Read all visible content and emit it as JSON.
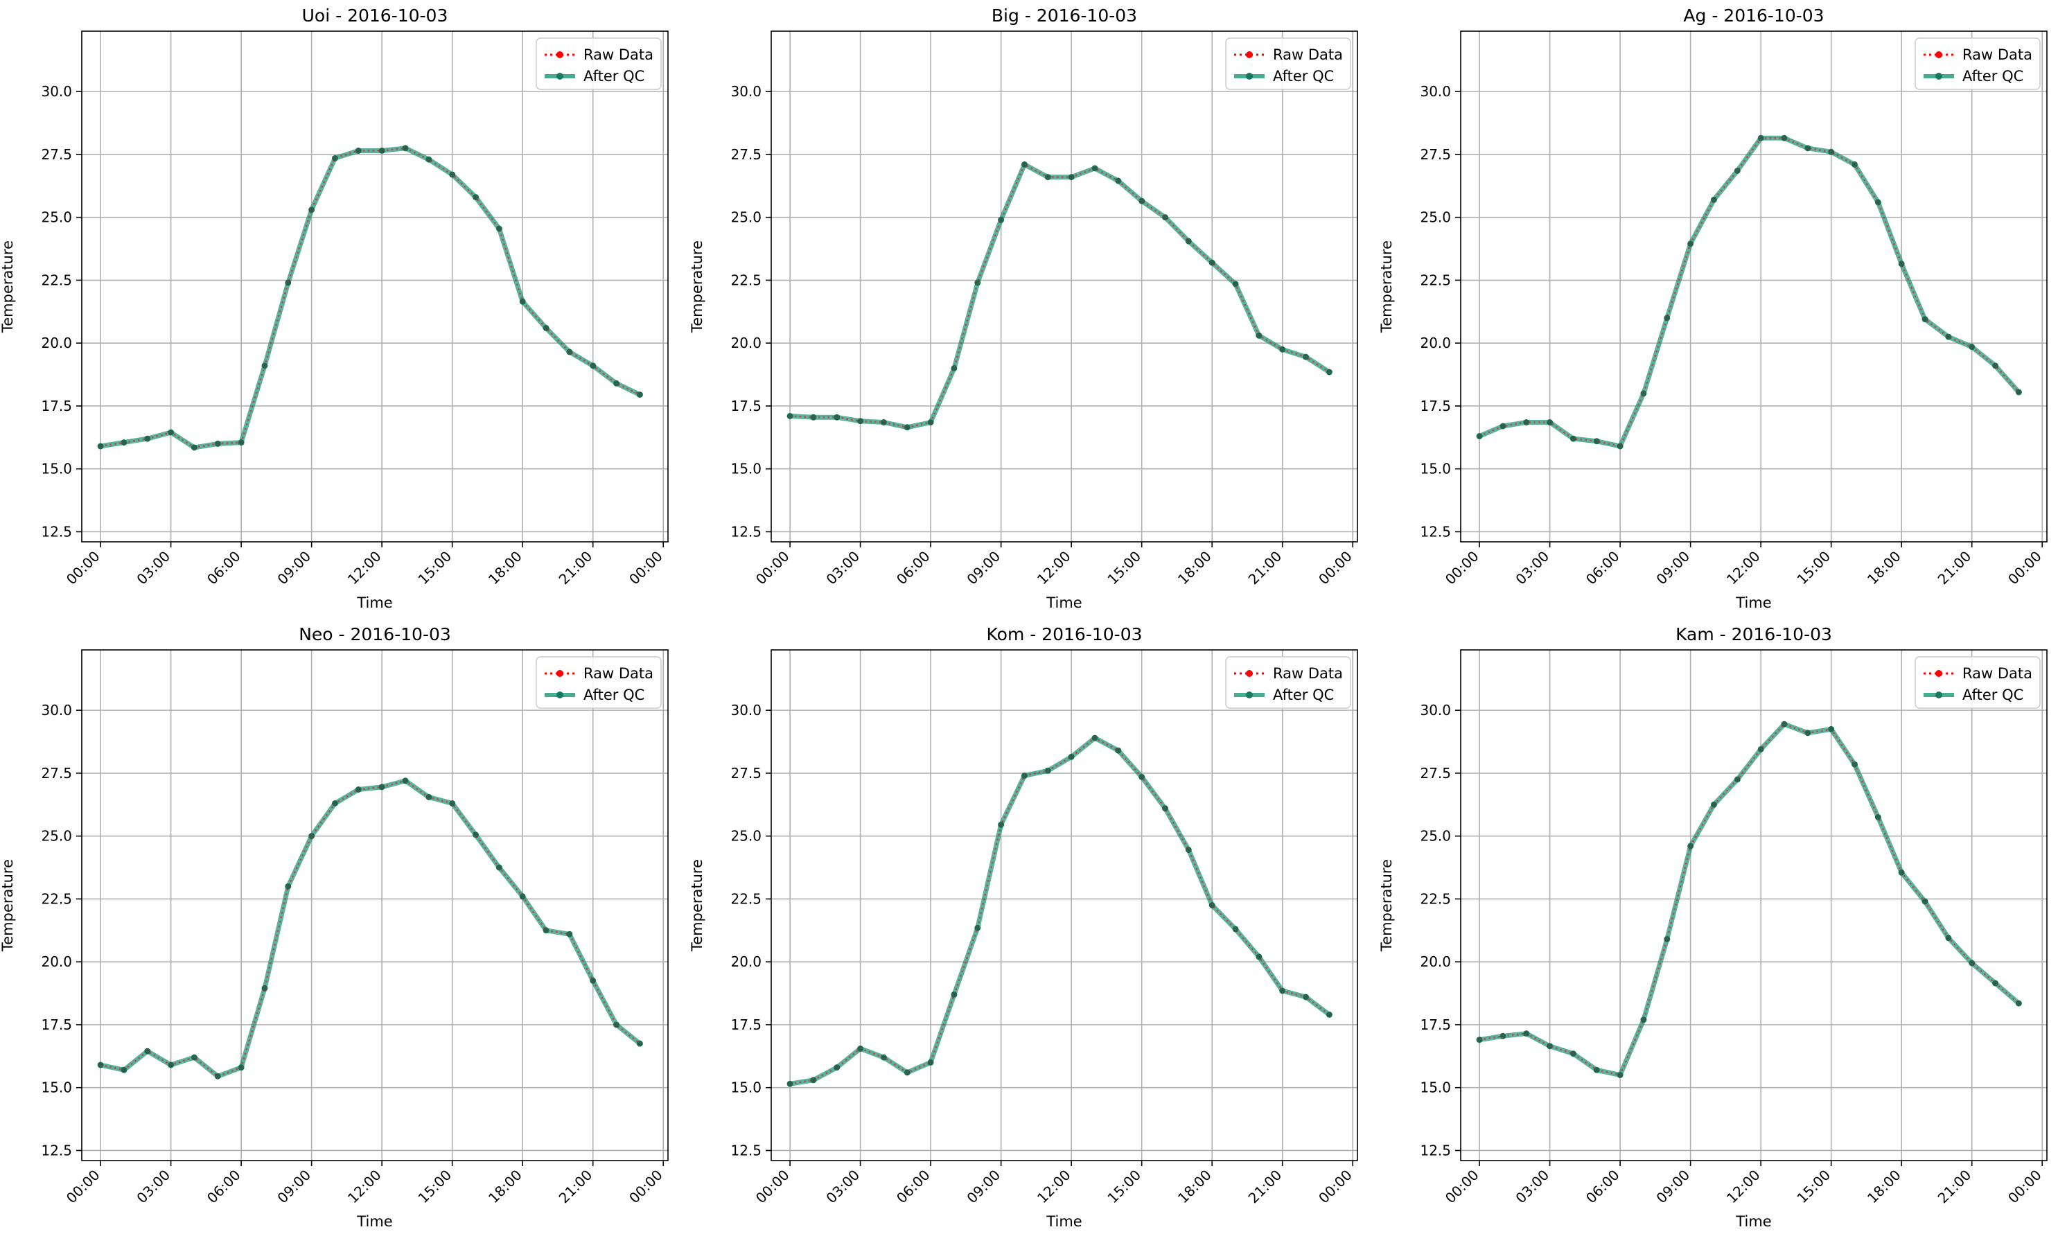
{
  "figure": {
    "x_tick_labels": [
      "00:00",
      "03:00",
      "06:00",
      "09:00",
      "12:00",
      "15:00",
      "18:00",
      "21:00",
      "00:00"
    ]
  },
  "chart_data": [
    {
      "type": "line",
      "title": "Uoi - 2016-10-03",
      "xlabel": "Time",
      "ylabel": "Temperature",
      "x_unit": "hours",
      "xlim": [
        -0.8,
        24.2
      ],
      "ylim": [
        12.1,
        32.4
      ],
      "yticks": [
        12.5,
        15.0,
        17.5,
        20.0,
        22.5,
        25.0,
        27.5,
        30.0
      ],
      "grid": true,
      "legend_position": "top-right",
      "x": [
        0,
        1,
        2,
        3,
        4,
        5,
        6,
        7,
        8,
        9,
        10,
        11,
        12,
        13,
        14,
        15,
        16,
        17,
        18,
        19,
        20,
        21,
        22,
        23
      ],
      "series": [
        {
          "name": "Raw Data",
          "color": "#ff0000",
          "style": "dotted",
          "marker": "circle",
          "values": [
            15.9,
            16.05,
            16.2,
            16.45,
            15.85,
            16.0,
            16.05,
            19.1,
            22.4,
            25.3,
            27.35,
            27.65,
            27.65,
            27.75,
            27.3,
            26.7,
            25.8,
            24.55,
            21.65,
            20.6,
            19.65,
            19.1,
            18.4,
            17.95
          ]
        },
        {
          "name": "After QC",
          "color": "#1a9678",
          "style": "solid",
          "marker": "circle",
          "values": [
            15.9,
            16.05,
            16.2,
            16.45,
            15.85,
            16.0,
            16.05,
            19.1,
            22.4,
            25.3,
            27.35,
            27.65,
            27.65,
            27.75,
            27.3,
            26.7,
            25.8,
            24.55,
            21.65,
            20.6,
            19.65,
            19.1,
            18.4,
            17.95
          ]
        }
      ]
    },
    {
      "type": "line",
      "title": "Big - 2016-10-03",
      "xlabel": "Time",
      "ylabel": "Temperature",
      "x_unit": "hours",
      "xlim": [
        -0.8,
        24.2
      ],
      "ylim": [
        12.1,
        32.4
      ],
      "yticks": [
        12.5,
        15.0,
        17.5,
        20.0,
        22.5,
        25.0,
        27.5,
        30.0
      ],
      "grid": true,
      "legend_position": "top-right",
      "x": [
        0,
        1,
        2,
        3,
        4,
        5,
        6,
        7,
        8,
        9,
        10,
        11,
        12,
        13,
        14,
        15,
        16,
        17,
        18,
        19,
        20,
        21,
        22,
        23
      ],
      "series": [
        {
          "name": "Raw Data",
          "color": "#ff0000",
          "style": "dotted",
          "marker": "circle",
          "values": [
            17.1,
            17.05,
            17.05,
            16.9,
            16.85,
            16.65,
            16.85,
            19.0,
            22.4,
            24.9,
            27.1,
            26.6,
            26.6,
            26.95,
            26.45,
            25.65,
            25.0,
            24.05,
            23.2,
            22.35,
            20.3,
            19.75,
            19.45,
            18.85
          ]
        },
        {
          "name": "After QC",
          "color": "#1a9678",
          "style": "solid",
          "marker": "circle",
          "values": [
            17.1,
            17.05,
            17.05,
            16.9,
            16.85,
            16.65,
            16.85,
            19.0,
            22.4,
            24.9,
            27.1,
            26.6,
            26.6,
            26.95,
            26.45,
            25.65,
            25.0,
            24.05,
            23.2,
            22.35,
            20.3,
            19.75,
            19.45,
            18.85
          ]
        }
      ]
    },
    {
      "type": "line",
      "title": "Ag - 2016-10-03",
      "xlabel": "Time",
      "ylabel": "Temperature",
      "x_unit": "hours",
      "xlim": [
        -0.8,
        24.2
      ],
      "ylim": [
        12.1,
        32.4
      ],
      "yticks": [
        12.5,
        15.0,
        17.5,
        20.0,
        22.5,
        25.0,
        27.5,
        30.0
      ],
      "grid": true,
      "legend_position": "top-right",
      "x": [
        0,
        1,
        2,
        3,
        4,
        5,
        6,
        7,
        8,
        9,
        10,
        11,
        12,
        13,
        14,
        15,
        16,
        17,
        18,
        19,
        20,
        21,
        22,
        23
      ],
      "series": [
        {
          "name": "Raw Data",
          "color": "#ff0000",
          "style": "dotted",
          "marker": "circle",
          "values": [
            16.3,
            16.7,
            16.85,
            16.85,
            16.2,
            16.1,
            15.9,
            18.0,
            21.0,
            23.95,
            25.7,
            26.85,
            28.15,
            28.15,
            27.75,
            27.6,
            27.1,
            25.6,
            23.15,
            20.95,
            20.25,
            19.85,
            19.1,
            18.05
          ]
        },
        {
          "name": "After QC",
          "color": "#1a9678",
          "style": "solid",
          "marker": "circle",
          "values": [
            16.3,
            16.7,
            16.85,
            16.85,
            16.2,
            16.1,
            15.9,
            18.0,
            21.0,
            23.95,
            25.7,
            26.85,
            28.15,
            28.15,
            27.75,
            27.6,
            27.1,
            25.6,
            23.15,
            20.95,
            20.25,
            19.85,
            19.1,
            18.05
          ]
        }
      ]
    },
    {
      "type": "line",
      "title": "Neo - 2016-10-03",
      "xlabel": "Time",
      "ylabel": "Temperature",
      "x_unit": "hours",
      "xlim": [
        -0.8,
        24.2
      ],
      "ylim": [
        12.1,
        32.4
      ],
      "yticks": [
        12.5,
        15.0,
        17.5,
        20.0,
        22.5,
        25.0,
        27.5,
        30.0
      ],
      "grid": true,
      "legend_position": "top-right",
      "x": [
        0,
        1,
        2,
        3,
        4,
        5,
        6,
        7,
        8,
        9,
        10,
        11,
        12,
        13,
        14,
        15,
        16,
        17,
        18,
        19,
        20,
        21,
        22,
        23
      ],
      "series": [
        {
          "name": "Raw Data",
          "color": "#ff0000",
          "style": "dotted",
          "marker": "circle",
          "values": [
            15.9,
            15.7,
            16.45,
            15.9,
            16.2,
            15.45,
            15.8,
            18.95,
            23.0,
            25.0,
            26.3,
            26.85,
            26.95,
            27.2,
            26.55,
            26.3,
            25.05,
            23.75,
            22.6,
            21.25,
            21.1,
            19.25,
            17.5,
            16.75
          ]
        },
        {
          "name": "After QC",
          "color": "#1a9678",
          "style": "solid",
          "marker": "circle",
          "values": [
            15.9,
            15.7,
            16.45,
            15.9,
            16.2,
            15.45,
            15.8,
            18.95,
            23.0,
            25.0,
            26.3,
            26.85,
            26.95,
            27.2,
            26.55,
            26.3,
            25.05,
            23.75,
            22.6,
            21.25,
            21.1,
            19.25,
            17.5,
            16.75
          ]
        }
      ]
    },
    {
      "type": "line",
      "title": "Kom - 2016-10-03",
      "xlabel": "Time",
      "ylabel": "Temperature",
      "x_unit": "hours",
      "xlim": [
        -0.8,
        24.2
      ],
      "ylim": [
        12.1,
        32.4
      ],
      "yticks": [
        12.5,
        15.0,
        17.5,
        20.0,
        22.5,
        25.0,
        27.5,
        30.0
      ],
      "grid": true,
      "legend_position": "top-right",
      "x": [
        0,
        1,
        2,
        3,
        4,
        5,
        6,
        7,
        8,
        9,
        10,
        11,
        12,
        13,
        14,
        15,
        16,
        17,
        18,
        19,
        20,
        21,
        22,
        23
      ],
      "series": [
        {
          "name": "Raw Data",
          "color": "#ff0000",
          "style": "dotted",
          "marker": "circle",
          "values": [
            15.15,
            15.3,
            15.8,
            16.55,
            16.2,
            15.6,
            16.0,
            18.7,
            21.35,
            25.45,
            27.4,
            27.6,
            28.15,
            28.9,
            28.4,
            27.35,
            26.1,
            24.45,
            22.25,
            21.3,
            20.2,
            18.85,
            18.6,
            17.9
          ]
        },
        {
          "name": "After QC",
          "color": "#1a9678",
          "style": "solid",
          "marker": "circle",
          "values": [
            15.15,
            15.3,
            15.8,
            16.55,
            16.2,
            15.6,
            16.0,
            18.7,
            21.35,
            25.45,
            27.4,
            27.6,
            28.15,
            28.9,
            28.4,
            27.35,
            26.1,
            24.45,
            22.25,
            21.3,
            20.2,
            18.85,
            18.6,
            17.9
          ]
        }
      ]
    },
    {
      "type": "line",
      "title": "Kam - 2016-10-03",
      "xlabel": "Time",
      "ylabel": "Temperature",
      "x_unit": "hours",
      "xlim": [
        -0.8,
        24.2
      ],
      "ylim": [
        12.1,
        32.4
      ],
      "yticks": [
        12.5,
        15.0,
        17.5,
        20.0,
        22.5,
        25.0,
        27.5,
        30.0
      ],
      "grid": true,
      "legend_position": "top-right",
      "x": [
        0,
        1,
        2,
        3,
        4,
        5,
        6,
        7,
        8,
        9,
        10,
        11,
        12,
        13,
        14,
        15,
        16,
        17,
        18,
        19,
        20,
        21,
        22,
        23
      ],
      "series": [
        {
          "name": "Raw Data",
          "color": "#ff0000",
          "style": "dotted",
          "marker": "circle",
          "values": [
            16.9,
            17.05,
            17.15,
            16.65,
            16.35,
            15.7,
            15.5,
            17.7,
            20.9,
            24.6,
            26.25,
            27.25,
            28.45,
            29.45,
            29.1,
            29.25,
            27.85,
            25.75,
            23.55,
            22.4,
            20.95,
            19.95,
            19.15,
            18.35
          ]
        },
        {
          "name": "After QC",
          "color": "#1a9678",
          "style": "solid",
          "marker": "circle",
          "values": [
            16.9,
            17.05,
            17.15,
            16.65,
            16.35,
            15.7,
            15.5,
            17.7,
            20.9,
            24.6,
            26.25,
            27.25,
            28.45,
            29.45,
            29.1,
            29.25,
            27.85,
            25.75,
            23.55,
            22.4,
            20.95,
            19.95,
            19.15,
            18.35
          ]
        }
      ]
    }
  ]
}
